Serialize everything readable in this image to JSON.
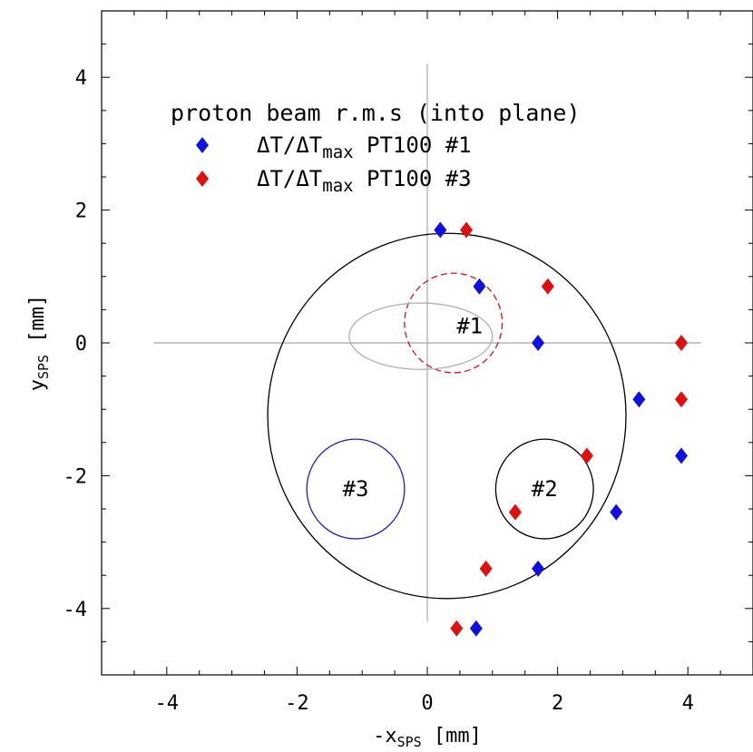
{
  "chart_data": {
    "type": "scatter",
    "xlabel": {
      "main": "-x",
      "sub": "SPS",
      "unit": "[mm]"
    },
    "ylabel": {
      "main": "y",
      "sub": "SPS",
      "unit": "[mm]"
    },
    "xlim": [
      -5,
      5
    ],
    "ylim": [
      -5,
      5
    ],
    "x_ticks": [
      -4,
      -2,
      0,
      2,
      4
    ],
    "y_ticks": [
      -4,
      -2,
      0,
      2,
      4
    ],
    "x_tick_labels": [
      "-4",
      "-2",
      "0",
      "2",
      "4"
    ],
    "y_tick_labels": [
      "-4",
      "-2",
      "0",
      "2",
      "4"
    ],
    "grid": false,
    "legend": {
      "title": "proton beam r.m.s (into plane)",
      "position": "top",
      "entries": [
        {
          "pre": "ΔT/ΔT",
          "sub": "max",
          "post": " PT100  #1",
          "color": "#1010e0"
        },
        {
          "pre": "ΔT/ΔT",
          "sub": "max",
          "post": " PT100  #3",
          "color": "#e01010"
        }
      ]
    },
    "series": [
      {
        "color": "#1010e0",
        "marker": "diamond",
        "points": [
          [
            0.2,
            1.7
          ],
          [
            0.8,
            0.85
          ],
          [
            1.7,
            0.0
          ],
          [
            3.25,
            -0.85
          ],
          [
            3.9,
            -1.7
          ],
          [
            2.9,
            -2.55
          ],
          [
            1.7,
            -3.4
          ],
          [
            0.75,
            -4.3
          ]
        ]
      },
      {
        "color": "#e01010",
        "marker": "diamond",
        "points": [
          [
            0.6,
            1.7
          ],
          [
            1.85,
            0.85
          ],
          [
            3.9,
            0.0
          ],
          [
            3.9,
            -0.85
          ],
          [
            2.45,
            -1.7
          ],
          [
            1.35,
            -2.55
          ],
          [
            0.9,
            -3.4
          ],
          [
            0.45,
            -4.3
          ]
        ]
      }
    ],
    "reference_lines": {
      "horizontal": {
        "y": 0,
        "x_from": -4.2,
        "x_to": 4.2
      },
      "vertical": {
        "x": 0,
        "y_from": -4.2,
        "y_to": 4.2
      },
      "color": "#a8a8a8"
    },
    "shapes": [
      {
        "kind": "circle",
        "cx": 0.3,
        "cy": -1.1,
        "r": 2.75,
        "color": "#000000",
        "style": "solid"
      },
      {
        "kind": "circle",
        "cx": -1.1,
        "cy": -2.2,
        "r": 0.75,
        "color": "#2020c8",
        "style": "solid"
      },
      {
        "kind": "circle",
        "cx": 1.8,
        "cy": -2.2,
        "r": 0.75,
        "color": "#000000",
        "style": "solid"
      },
      {
        "kind": "circle",
        "cx": 0.4,
        "cy": 0.3,
        "r": 0.75,
        "color": "#e01010",
        "style": "dashed"
      },
      {
        "kind": "ellipse",
        "cx": -0.1,
        "cy": 0.1,
        "rx": 1.1,
        "ry": 0.5,
        "color": "#b0b0b0",
        "style": "solid"
      }
    ],
    "region_labels": [
      {
        "text": "#1",
        "x": 0.65,
        "y": 0.25
      },
      {
        "text": "#2",
        "x": 1.8,
        "y": -2.2
      },
      {
        "text": "#3",
        "x": -1.1,
        "y": -2.2
      }
    ]
  }
}
